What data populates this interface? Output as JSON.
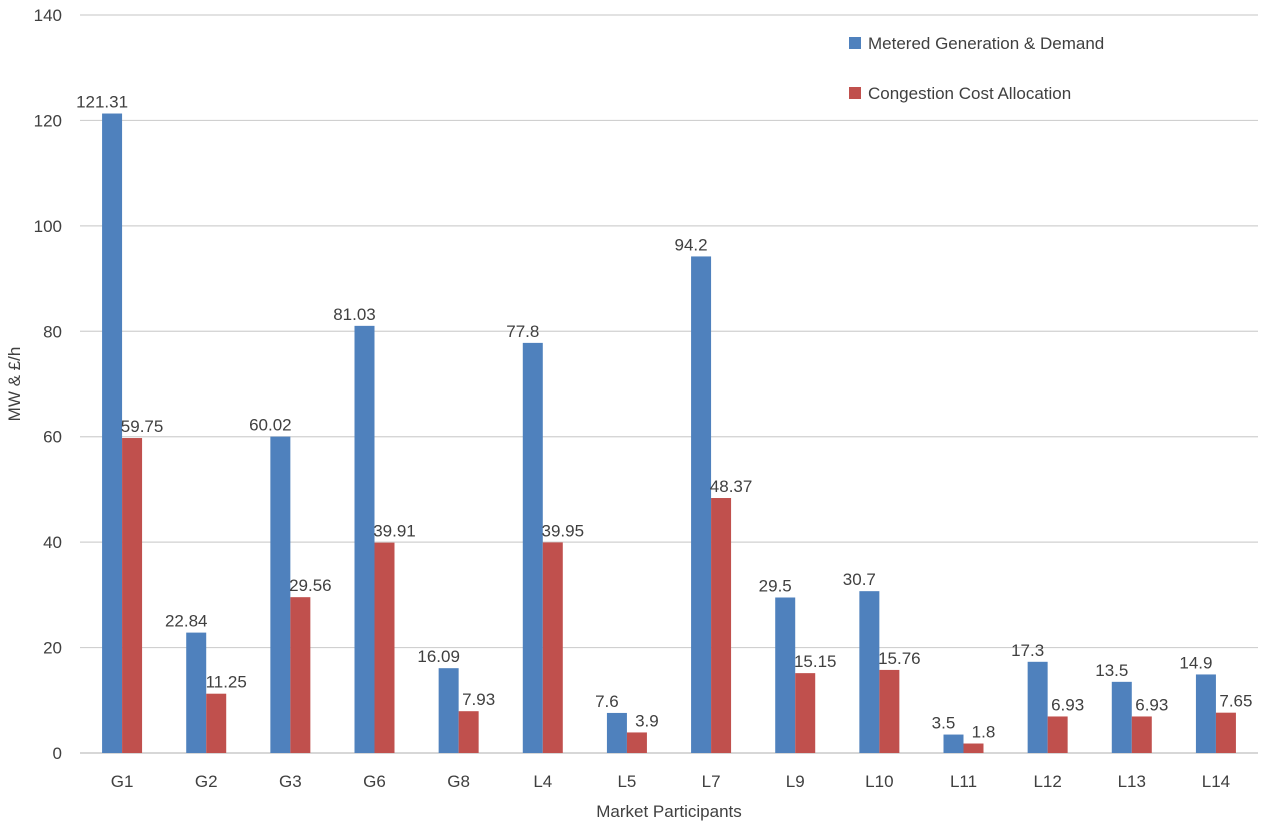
{
  "chart_data": {
    "type": "bar",
    "title": "",
    "xlabel": "Market Participants",
    "ylabel": "MW & £/h",
    "ylim": [
      0,
      140
    ],
    "yticks": [
      0,
      20,
      40,
      60,
      80,
      100,
      120,
      140
    ],
    "grid": true,
    "legend_position": "top-right",
    "categories": [
      "G1",
      "G2",
      "G3",
      "G6",
      "G8",
      "L4",
      "L5",
      "L7",
      "L9",
      "L10",
      "L11",
      "L12",
      "L13",
      "L14"
    ],
    "series": [
      {
        "name": "Metered Generation & Demand",
        "color": "#4F81BD",
        "values": [
          121.31,
          22.84,
          60.02,
          81.03,
          16.09,
          77.8,
          7.6,
          94.2,
          29.5,
          30.7,
          3.5,
          17.3,
          13.5,
          14.9
        ],
        "labels": [
          "121.31",
          "22.84",
          "60.02",
          "81.03",
          "16.09",
          "77.8",
          "7.6",
          "94.2",
          "29.5",
          "30.7",
          "3.5",
          "17.3",
          "13.5",
          "14.9"
        ]
      },
      {
        "name": "Congestion Cost Allocation",
        "color": "#C0504D",
        "values": [
          59.75,
          11.25,
          29.56,
          39.91,
          7.93,
          39.95,
          3.9,
          48.37,
          15.15,
          15.76,
          1.8,
          6.93,
          6.93,
          7.65
        ],
        "labels": [
          "59.75",
          "11.25",
          "29.56",
          "39.91",
          "7.93",
          "39.95",
          "3.9",
          "48.37",
          "15.15",
          "15.76",
          "1.8",
          "6.93",
          "6.93",
          "7.65"
        ]
      }
    ]
  }
}
